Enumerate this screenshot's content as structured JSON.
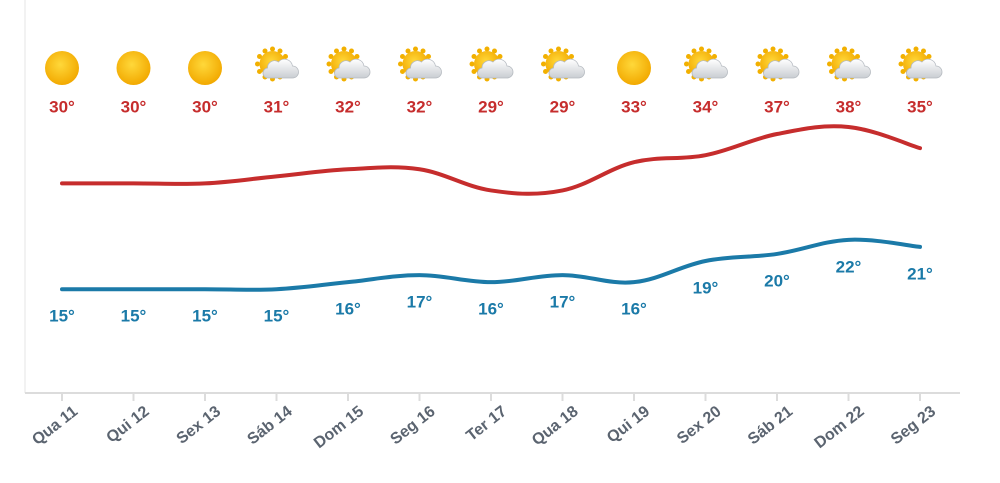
{
  "chart_data": {
    "type": "line",
    "categories": [
      "Qua 11",
      "Qui 12",
      "Sex 13",
      "Sáb 14",
      "Dom 15",
      "Seg 16",
      "Ter 17",
      "Qua 18",
      "Qui 19",
      "Sex 20",
      "Sáb 21",
      "Dom 22",
      "Seg 23"
    ],
    "series": [
      {
        "color": "#c62d2d",
        "values": [
          30,
          30,
          30,
          31,
          32,
          32,
          29,
          29,
          33,
          34,
          37,
          38,
          35
        ],
        "value_labels": [
          "30°",
          "30°",
          "30°",
          "31°",
          "32°",
          "32°",
          "29°",
          "29°",
          "33°",
          "34°",
          "37°",
          "38°",
          "35°"
        ]
      },
      {
        "color": "#1b7aa8",
        "values": [
          15,
          15,
          15,
          15,
          16,
          17,
          16,
          17,
          16,
          19,
          20,
          22,
          21
        ],
        "value_labels": [
          "15°",
          "15°",
          "15°",
          "15°",
          "16°",
          "17°",
          "16°",
          "17°",
          "16°",
          "19°",
          "20°",
          "22°",
          "21°"
        ]
      }
    ],
    "ylim": [
      0,
      56
    ]
  }
}
